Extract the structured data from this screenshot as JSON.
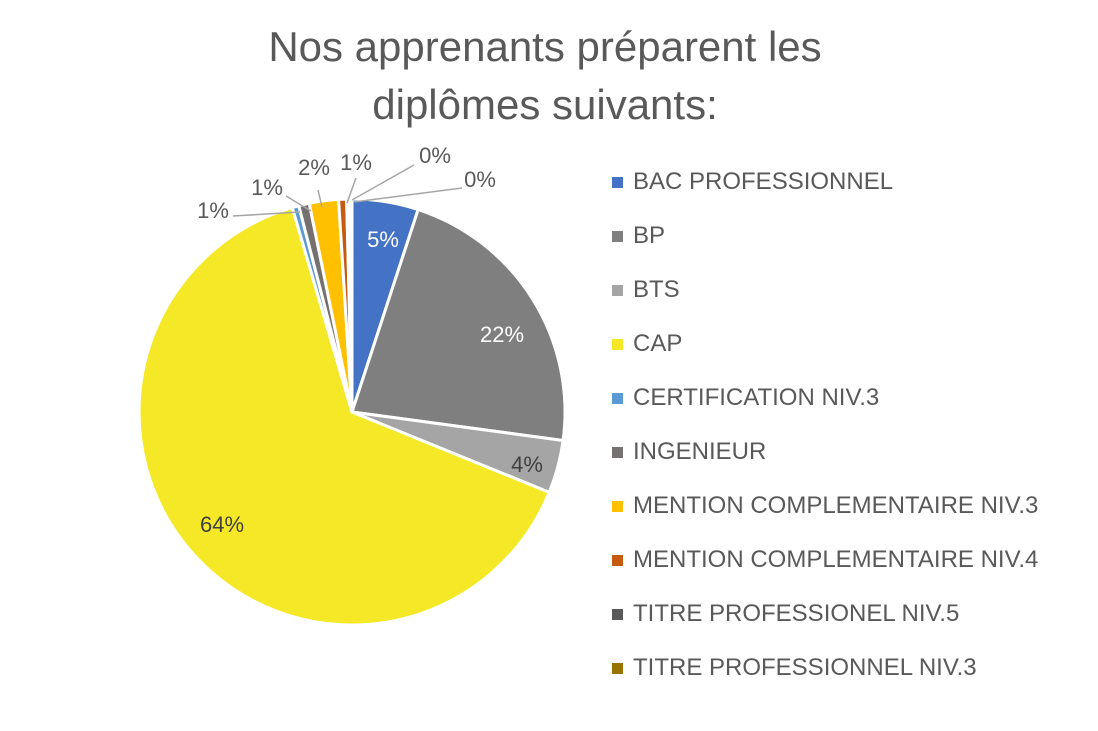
{
  "chart_data": {
    "type": "pie",
    "title": "Nos apprenants préparent les diplômes suivants:",
    "legend_position": "right",
    "slices": [
      {
        "name": "BAC PROFESSIONNEL",
        "value": 5,
        "label": "5%",
        "color": "#4472C4",
        "label_color": "#ffffff"
      },
      {
        "name": "BP",
        "value": 22,
        "label": "22%",
        "color": "#7F7F7F",
        "label_color": "#ffffff"
      },
      {
        "name": "BTS",
        "value": 4,
        "label": "4%",
        "color": "#A5A5A5",
        "label_color": "#404040"
      },
      {
        "name": "CAP",
        "value": 64,
        "label": "64%",
        "color": "#F5E927",
        "label_color": "#404040"
      },
      {
        "name": "CERTIFICATION NIV.3",
        "value": 0.5,
        "label": "1%",
        "color": "#5B9BD5",
        "label_color": "#595959"
      },
      {
        "name": "INGENIEUR",
        "value": 0.8,
        "label": "1%",
        "color": "#767171",
        "label_color": "#595959"
      },
      {
        "name": "MENTION COMPLEMENTAIRE NIV.3",
        "value": 2.2,
        "label": "2%",
        "color": "#FFC000",
        "label_color": "#595959"
      },
      {
        "name": "MENTION COMPLEMENTAIRE NIV.4",
        "value": 0.6,
        "label": "1%",
        "color": "#C55A11",
        "label_color": "#595959"
      },
      {
        "name": "TITRE PROFESSIONEL NIV.5",
        "value": 0.2,
        "label": "0%",
        "color": "#595959",
        "label_color": "#595959"
      },
      {
        "name": "TITRE PROFESSIONNEL NIV.3",
        "value": 0.2,
        "label": "0%",
        "color": "#997300",
        "label_color": "#595959"
      }
    ]
  }
}
